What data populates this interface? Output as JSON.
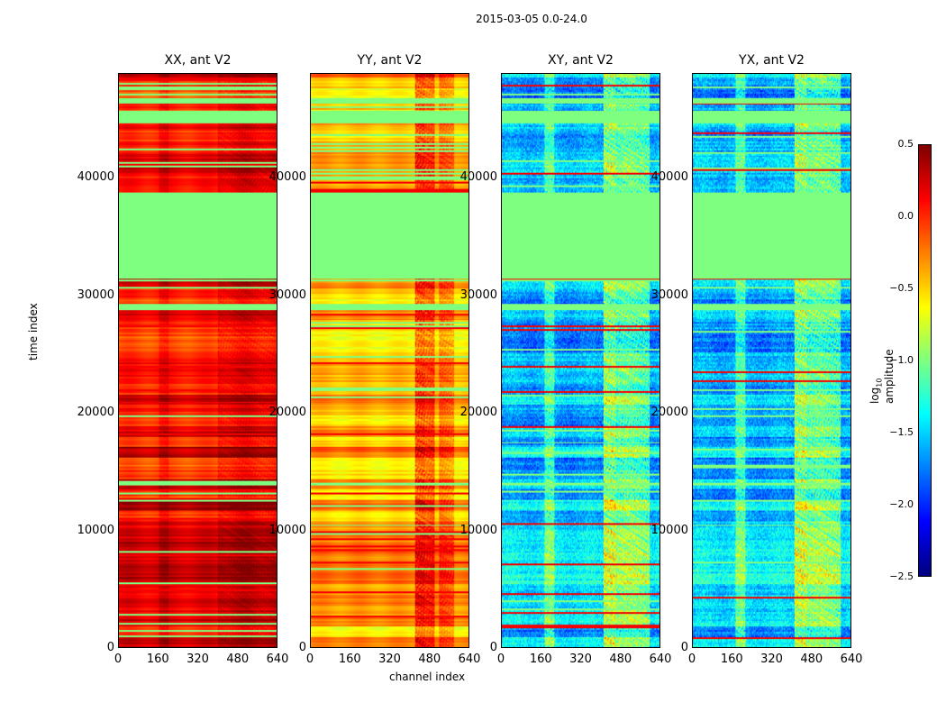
{
  "chart_data": {
    "type": "heatmap",
    "title": "2015-03-05 0.0-24.0",
    "xlabel": "channel index",
    "ylabel": "time index",
    "xlim": [
      0,
      640
    ],
    "ylim": [
      0,
      48900
    ],
    "xticks": [
      "0",
      "160",
      "320",
      "480",
      "640"
    ],
    "yticks": [
      "0",
      "10000",
      "20000",
      "30000",
      "40000"
    ],
    "colormap": "jet",
    "colorbar": {
      "label_prefix": "log",
      "label_sub": "10",
      "label_suffix": " amplitude",
      "range": [
        -2.5,
        0.5
      ],
      "ticks": [
        "0.5",
        "0.0",
        "−0.5",
        "−1.0",
        "−1.5",
        "−2.0",
        "−2.5"
      ]
    },
    "flagged_value": -1.0,
    "flagged_bands": [
      [
        31500,
        38800
      ],
      [
        44700,
        45800
      ],
      [
        46400,
        46900
      ],
      [
        28800,
        29300
      ],
      [
        13800,
        14100
      ]
    ],
    "panels": [
      {
        "title": "XX, ant V2",
        "base": 0.1,
        "features": [
          {
            "ch": [
              400,
              640
            ],
            "delta": 0.15
          },
          {
            "ch": [
              160,
              200
            ],
            "delta": 0.1
          }
        ]
      },
      {
        "title": "YY, ant V2",
        "base": -0.4,
        "features": [
          {
            "ch": [
              420,
              460
            ],
            "delta": 0.45
          },
          {
            "ch": [
              460,
              500
            ],
            "delta": 0.35
          },
          {
            "ch": [
              520,
              580
            ],
            "delta": 0.25
          }
        ]
      },
      {
        "title": "XY, ant V2",
        "base": -1.55,
        "features": [
          {
            "ch": [
              410,
              460
            ],
            "delta": 0.7
          },
          {
            "ch": [
              460,
              600
            ],
            "delta": 0.5
          },
          {
            "ch": [
              170,
              210
            ],
            "delta": 0.4
          }
        ]
      },
      {
        "title": "YX, ant V2",
        "base": -1.55,
        "features": [
          {
            "ch": [
              410,
              460
            ],
            "delta": 0.7
          },
          {
            "ch": [
              460,
              600
            ],
            "delta": 0.5
          },
          {
            "ch": [
              170,
              210
            ],
            "delta": 0.4
          }
        ]
      }
    ]
  }
}
